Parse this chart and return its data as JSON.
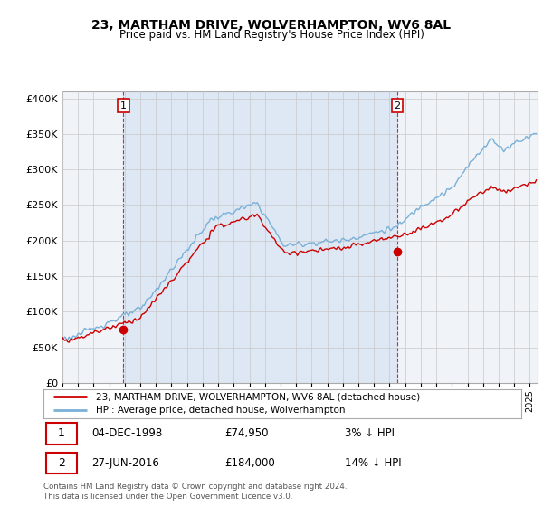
{
  "title": "23, MARTHAM DRIVE, WOLVERHAMPTON, WV6 8AL",
  "subtitle": "Price paid vs. HM Land Registry's House Price Index (HPI)",
  "hpi_label": "HPI: Average price, detached house, Wolverhampton",
  "price_label": "23, MARTHAM DRIVE, WOLVERHAMPTON, WV6 8AL (detached house)",
  "transaction1": {
    "label": "1",
    "date": "04-DEC-1998",
    "price": "£74,950",
    "note": "3% ↓ HPI"
  },
  "transaction2": {
    "label": "2",
    "date": "27-JUN-2016",
    "price": "£184,000",
    "note": "14% ↓ HPI"
  },
  "footnote": "Contains HM Land Registry data © Crown copyright and database right 2024.\nThis data is licensed under the Open Government Licence v3.0.",
  "ylim": [
    0,
    400000
  ],
  "yticks": [
    0,
    50000,
    100000,
    150000,
    200000,
    250000,
    300000,
    350000,
    400000
  ],
  "hpi_color": "#7ab0d8",
  "price_color": "#cc0000",
  "transaction1_x": 1998.92,
  "transaction1_y": 74950,
  "transaction2_x": 2016.5,
  "transaction2_y": 184000,
  "bg_color": "#ffffff",
  "plot_bg_color": "#f0f4f8",
  "band_color": "#dde8f4",
  "grid_color": "#c8c8c8",
  "annotation_color": "#cc0000",
  "xmin": 1995.0,
  "xmax": 2025.5
}
